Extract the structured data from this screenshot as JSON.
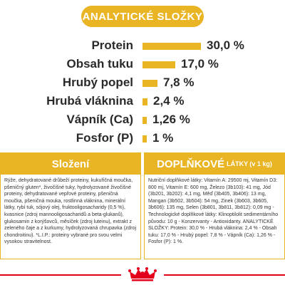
{
  "header": {
    "title": "ANALYTICKÉ SLOŽKY"
  },
  "analysis": {
    "rows": [
      {
        "label": "Protein",
        "value": "30,0 %",
        "fraction": 0.3
      },
      {
        "label": "Obsah tuku",
        "value": "17,0 %",
        "fraction": 0.17
      },
      {
        "label": "Hrubý popel",
        "value": "7,8 %",
        "fraction": 0.078
      },
      {
        "label": "Hrubá vláknina",
        "value": "2,4 %",
        "fraction": 0.024
      },
      {
        "label": "Vápník (Ca)",
        "value": "1,26 %",
        "fraction": 0.0126
      },
      {
        "label": "Fosfor (P)",
        "value": "1 %",
        "fraction": 0.01
      }
    ],
    "bar_color": "#e9b524"
  },
  "composition": {
    "title": "Složení",
    "text": "Rýže, dehydratované drůbeží proteiny, kukuřičná moučka, pšeničný gluten*, živočišné tuky, hydrolyzované živočišné proteiny, dehydratované vepřové proteiny, pšeničná moučka, pšeničná mouka, rostlinná vláknina, minerální látky, rybí tuk, sójový olej, fruktooligosacharidy (0,5 %), kvasnice (zdroj mannooligosacharidů a beta-glukanů), glukosamin z korýšovců, měsíček (zdroj luteinu), extrakt z zeleného čaje a z kurkumy, hydrolyzovaná chrupavka (zdroj chondroitinu). *L.I.P.: proteiny vybrané pro svou velmi vysokou stravitelnost."
  },
  "additives": {
    "title": "DOPLŇKOVÉ",
    "title_small": "LÁTKY (v 1 kg)",
    "text": "Nutriční doplňkové látky: Vitamín A: 29500 mj, Vitamín D3: 800 mj, Vitamín E: 600 mg, Železo (3b103): 41 mg, Jód (3b201, 3b202): 4,1 mg, Měď (3b405, 3b406): 13 mg, Mangan (3b502, 3b504): 54 mg, Zinek (3b603, 3b605, 3b606): 135 mg, Selen (3b801, 3b811, 3b812): 0,09 mg - Technologické doplňkové látky: Klinoptilolit sedimentárního původu: 10 g - Konzervanty - Antioxidanty. ANALYTICKÉ SLOŽKY: Protein: 30,0 % - Hrubá vláknina: 2,4 % - Obsah tuku: 17,0 % - Hrubý popel: 7,8 % - Vápník (Ca): 1,26 % - Fosfor (P): 1 %."
  },
  "brand": {
    "logo_icon": "crown-logo-icon",
    "accent": "#e3001b"
  }
}
